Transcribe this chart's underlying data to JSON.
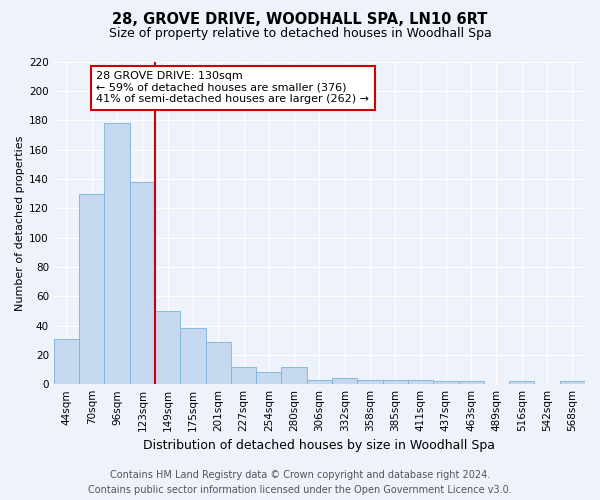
{
  "title": "28, GROVE DRIVE, WOODHALL SPA, LN10 6RT",
  "subtitle": "Size of property relative to detached houses in Woodhall Spa",
  "xlabel": "Distribution of detached houses by size in Woodhall Spa",
  "ylabel": "Number of detached properties",
  "categories": [
    "44sqm",
    "70sqm",
    "96sqm",
    "123sqm",
    "149sqm",
    "175sqm",
    "201sqm",
    "227sqm",
    "254sqm",
    "280sqm",
    "306sqm",
    "332sqm",
    "358sqm",
    "385sqm",
    "411sqm",
    "437sqm",
    "463sqm",
    "489sqm",
    "516sqm",
    "542sqm",
    "568sqm"
  ],
  "values": [
    31,
    130,
    178,
    138,
    50,
    38,
    29,
    12,
    8,
    12,
    3,
    4,
    3,
    3,
    3,
    2,
    2,
    0,
    2,
    0,
    2
  ],
  "bar_color": "#c5d8f0",
  "bar_edge_color": "#7ab4d8",
  "vline_x_index": 3,
  "vline_color": "#cc0000",
  "ylim": [
    0,
    220
  ],
  "yticks": [
    0,
    20,
    40,
    60,
    80,
    100,
    120,
    140,
    160,
    180,
    200,
    220
  ],
  "annotation_text": "28 GROVE DRIVE: 130sqm\n← 59% of detached houses are smaller (376)\n41% of semi-detached houses are larger (262) →",
  "annotation_box_color": "#ffffff",
  "annotation_box_edge_color": "#cc0000",
  "footer_line1": "Contains HM Land Registry data © Crown copyright and database right 2024.",
  "footer_line2": "Contains public sector information licensed under the Open Government Licence v3.0.",
  "background_color": "#edf2fb",
  "plot_background_color": "#edf2fb",
  "grid_color": "#ffffff",
  "title_fontsize": 10.5,
  "subtitle_fontsize": 9,
  "xlabel_fontsize": 9,
  "ylabel_fontsize": 8,
  "tick_fontsize": 7.5,
  "footer_fontsize": 7
}
